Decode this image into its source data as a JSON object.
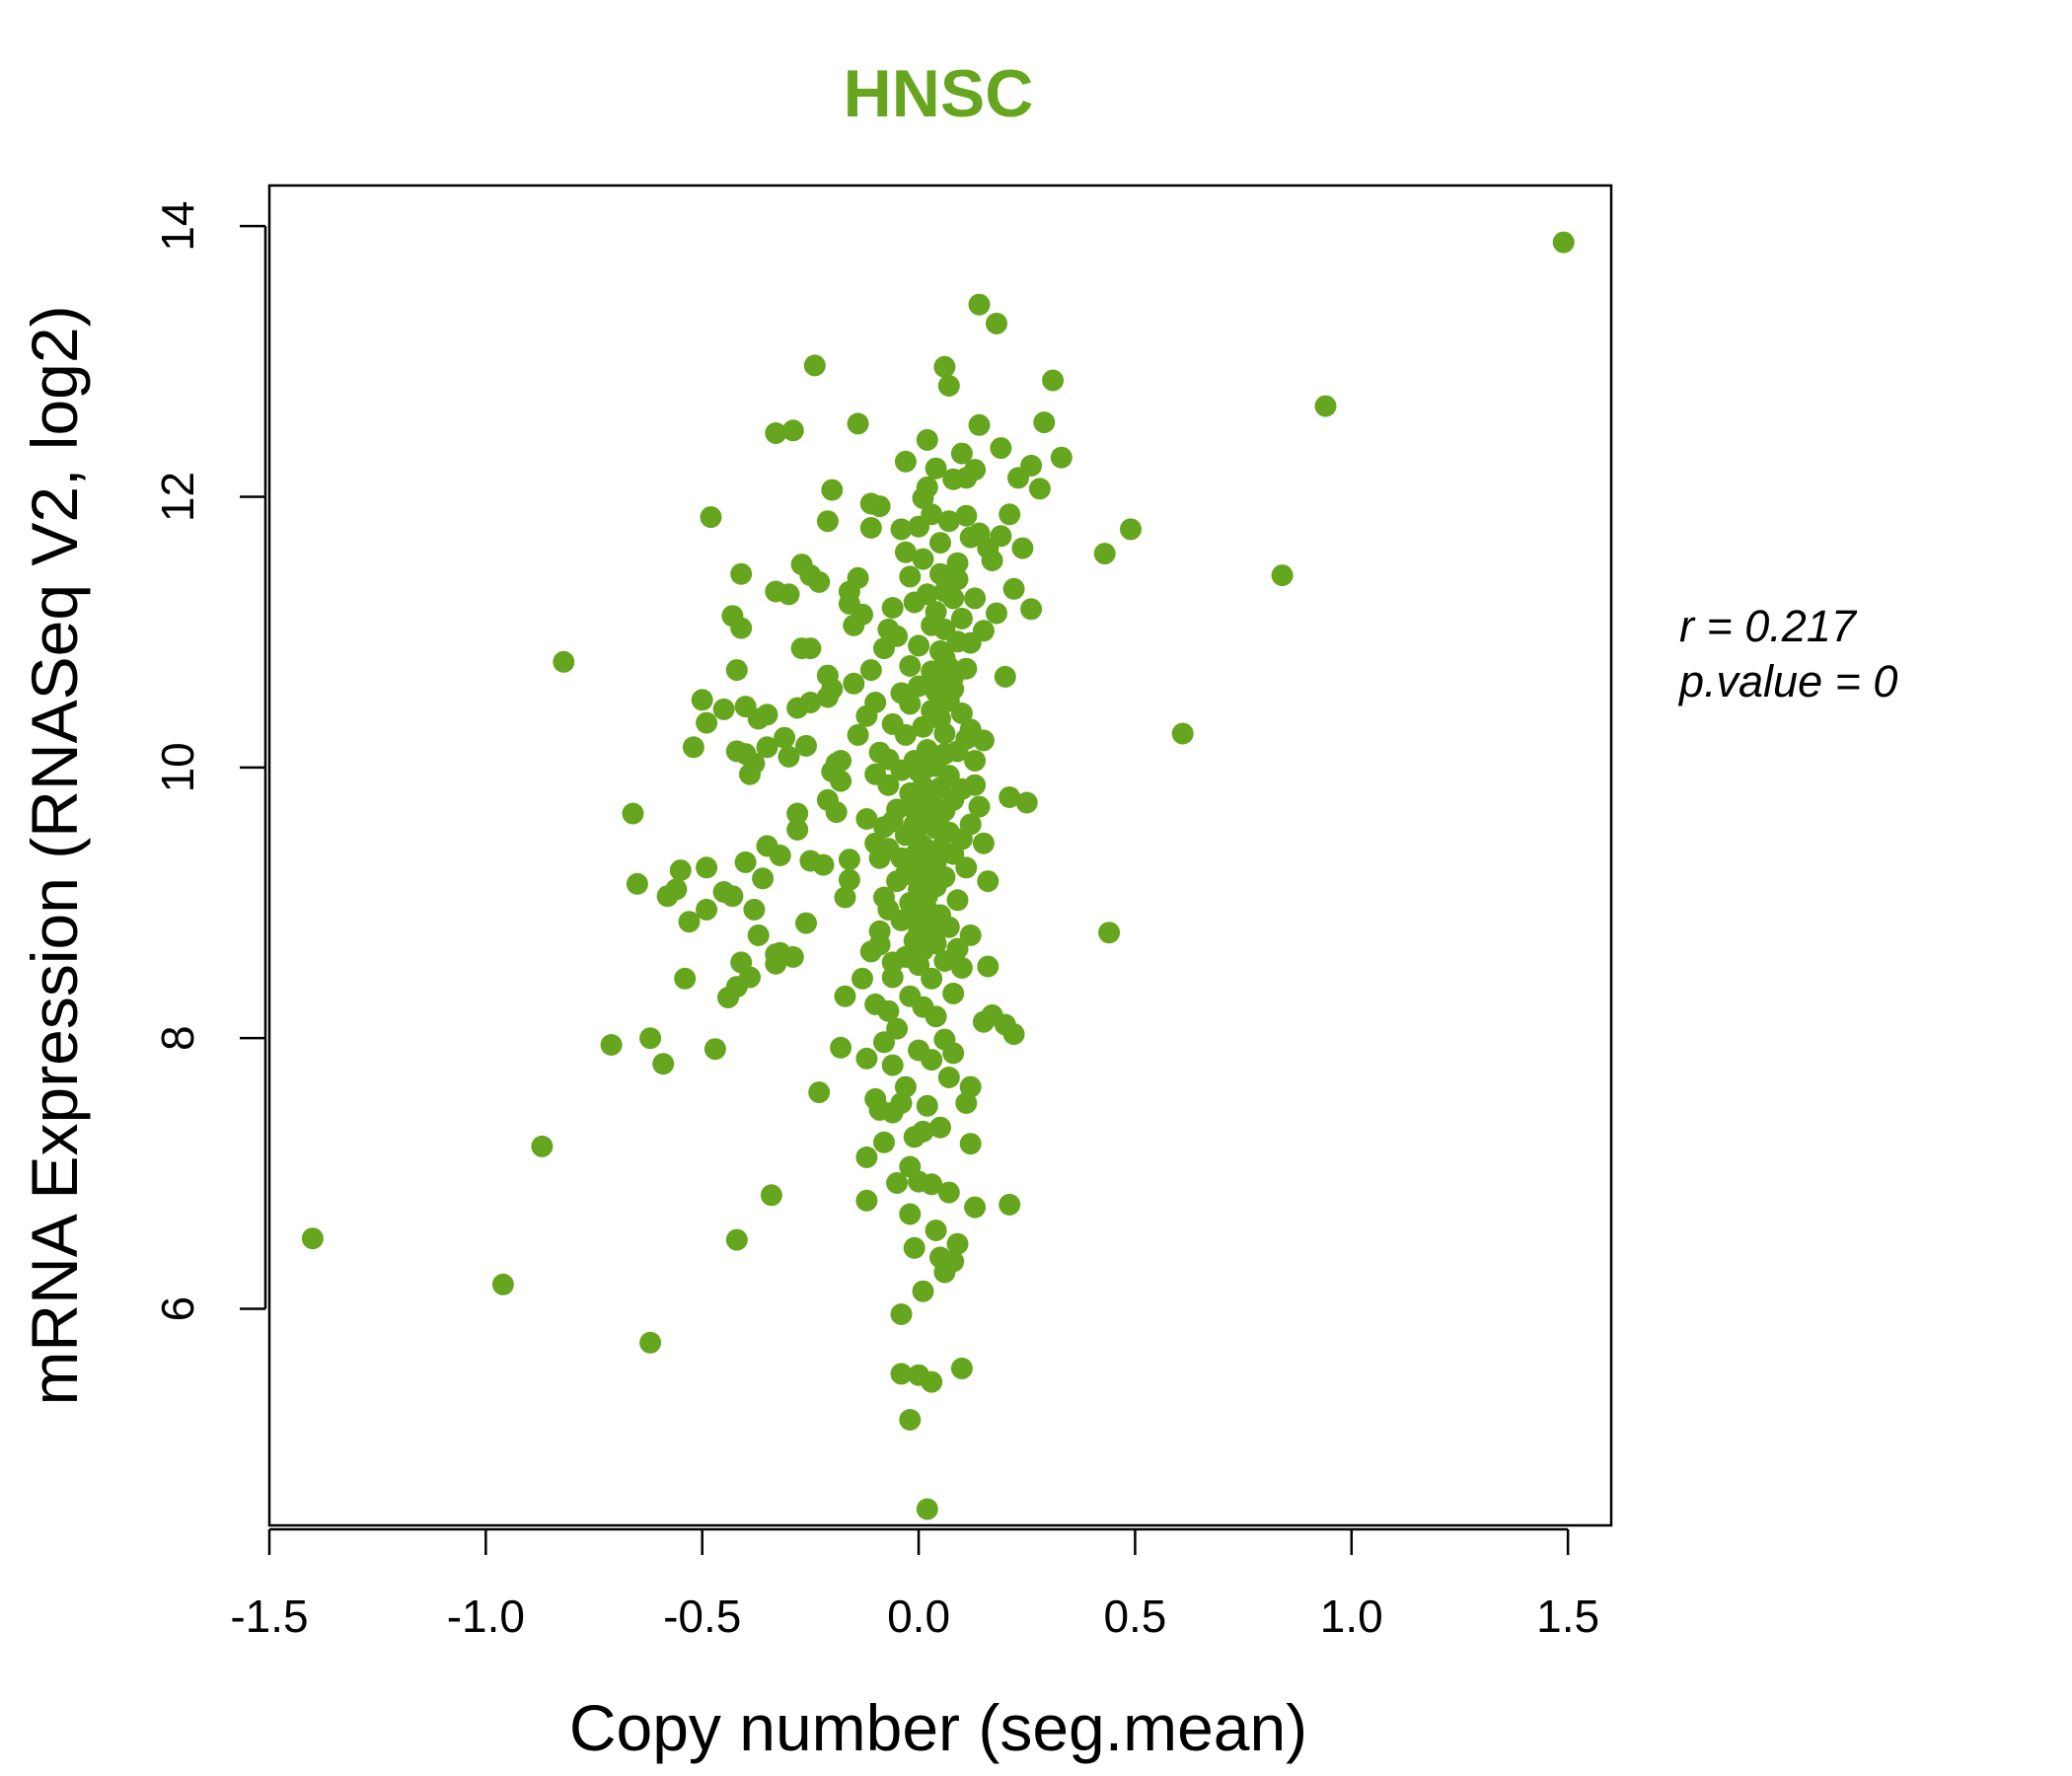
{
  "chart_data": {
    "type": "scatter",
    "title": "HNSC",
    "xlabel": "Copy number (seg.mean)",
    "ylabel": "mRNA Expression (RNASeq V2, log2)",
    "xlim": [
      -1.5,
      1.6
    ],
    "ylim": [
      4.4,
      14.3
    ],
    "x_ticks": [
      -1.5,
      -1.0,
      -0.5,
      0.0,
      0.5,
      1.0,
      1.5
    ],
    "x_tick_labels": [
      "-1.5",
      "-1.0",
      "-0.5",
      "0.0",
      "0.5",
      "1.0",
      "1.5"
    ],
    "y_ticks": [
      6,
      8,
      10,
      12,
      14
    ],
    "y_tick_labels": [
      "6",
      "8",
      "10",
      "12",
      "14"
    ],
    "grid": false,
    "colors": {
      "points": "#66a61e",
      "title": "#66a61e",
      "axes": "#000000"
    },
    "annotations": {
      "r_label": "r = 0.217",
      "p_label": "p.value = 0"
    },
    "points": [
      [
        1.49,
        13.88
      ],
      [
        0.94,
        12.67
      ],
      [
        0.84,
        11.42
      ],
      [
        0.61,
        10.25
      ],
      [
        0.49,
        11.76
      ],
      [
        0.44,
        8.78
      ],
      [
        0.43,
        11.58
      ],
      [
        -1.4,
        6.52
      ],
      [
        -0.96,
        6.18
      ],
      [
        -0.87,
        7.2
      ],
      [
        -0.82,
        10.78
      ],
      [
        -0.71,
        7.95
      ],
      [
        -0.66,
        9.66
      ],
      [
        -0.65,
        9.14
      ],
      [
        -0.62,
        8.0
      ],
      [
        -0.62,
        5.75
      ],
      [
        -0.59,
        7.81
      ],
      [
        -0.58,
        9.05
      ],
      [
        -0.56,
        9.1
      ],
      [
        -0.55,
        9.24
      ],
      [
        -0.54,
        8.44
      ],
      [
        -0.53,
        8.86
      ],
      [
        -0.52,
        10.15
      ],
      [
        -0.5,
        10.5
      ],
      [
        -0.49,
        9.26
      ],
      [
        -0.49,
        10.33
      ],
      [
        -0.49,
        8.95
      ],
      [
        -0.48,
        11.85
      ],
      [
        -0.47,
        7.92
      ],
      [
        -0.45,
        10.43
      ],
      [
        -0.45,
        9.08
      ],
      [
        -0.44,
        8.3
      ],
      [
        -0.43,
        11.12
      ],
      [
        -0.43,
        9.05
      ],
      [
        -0.42,
        10.72
      ],
      [
        -0.42,
        10.12
      ],
      [
        -0.42,
        6.51
      ],
      [
        -0.42,
        8.38
      ],
      [
        -0.41,
        11.43
      ],
      [
        -0.41,
        11.03
      ],
      [
        -0.41,
        8.56
      ],
      [
        -0.4,
        10.45
      ],
      [
        -0.4,
        10.1
      ],
      [
        -0.4,
        9.3
      ],
      [
        -0.39,
        8.45
      ],
      [
        -0.39,
        9.95
      ],
      [
        -0.38,
        10.03
      ],
      [
        -0.38,
        8.95
      ],
      [
        -0.37,
        8.76
      ],
      [
        -0.37,
        10.36
      ],
      [
        -0.36,
        9.18
      ],
      [
        -0.35,
        9.42
      ],
      [
        -0.35,
        10.39
      ],
      [
        -0.35,
        10.15
      ],
      [
        -0.34,
        6.84
      ],
      [
        -0.33,
        8.62
      ],
      [
        -0.33,
        11.3
      ],
      [
        -0.33,
        12.47
      ],
      [
        -0.33,
        8.55
      ],
      [
        -0.32,
        9.35
      ],
      [
        -0.32,
        8.63
      ],
      [
        -0.31,
        10.22
      ],
      [
        -0.3,
        11.28
      ],
      [
        -0.3,
        10.08
      ],
      [
        -0.29,
        8.6
      ],
      [
        -0.29,
        12.49
      ],
      [
        -0.28,
        10.44
      ],
      [
        -0.28,
        9.66
      ],
      [
        -0.28,
        9.54
      ],
      [
        -0.27,
        10.88
      ],
      [
        -0.27,
        11.5
      ],
      [
        -0.26,
        10.16
      ],
      [
        -0.26,
        8.85
      ],
      [
        -0.25,
        11.42
      ],
      [
        -0.25,
        10.48
      ],
      [
        -0.25,
        9.31
      ],
      [
        -0.25,
        10.88
      ],
      [
        -0.24,
        12.97
      ],
      [
        -0.23,
        11.37
      ],
      [
        -0.23,
        7.6
      ],
      [
        -0.22,
        9.28
      ],
      [
        -0.21,
        11.82
      ],
      [
        -0.21,
        10.52
      ],
      [
        -0.21,
        9.76
      ],
      [
        -0.21,
        10.68
      ],
      [
        -0.2,
        10.58
      ],
      [
        -0.2,
        9.97
      ],
      [
        -0.19,
        10.03
      ],
      [
        -0.19,
        9.67
      ],
      [
        -0.18,
        7.93
      ],
      [
        -0.18,
        9.9
      ],
      [
        -0.18,
        10.05
      ],
      [
        -0.17,
        9.04
      ],
      [
        -0.17,
        8.31
      ],
      [
        -0.16,
        11.3
      ],
      [
        -0.16,
        9.17
      ],
      [
        -0.16,
        9.32
      ],
      [
        -0.16,
        11.21
      ],
      [
        -0.15,
        11.05
      ],
      [
        -0.15,
        10.62
      ],
      [
        -0.14,
        12.54
      ],
      [
        -0.14,
        11.4
      ],
      [
        -0.14,
        10.24
      ],
      [
        -0.13,
        8.44
      ],
      [
        -0.13,
        11.13
      ],
      [
        -0.12,
        7.85
      ],
      [
        -0.12,
        9.62
      ],
      [
        -0.12,
        7.12
      ],
      [
        -0.12,
        10.38
      ],
      [
        -0.12,
        6.8
      ],
      [
        -0.11,
        11.95
      ],
      [
        -0.11,
        11.77
      ],
      [
        -0.11,
        8.64
      ],
      [
        -0.11,
        10.72
      ],
      [
        -0.1,
        8.25
      ],
      [
        -0.1,
        9.44
      ],
      [
        -0.1,
        9.95
      ],
      [
        -0.1,
        10.48
      ],
      [
        -0.1,
        7.55
      ],
      [
        -0.09,
        11.93
      ],
      [
        -0.09,
        8.79
      ],
      [
        -0.09,
        9.33
      ],
      [
        -0.09,
        10.11
      ],
      [
        -0.09,
        7.47
      ],
      [
        -0.09,
        8.69
      ],
      [
        -0.08,
        9.04
      ],
      [
        -0.08,
        10.88
      ],
      [
        -0.08,
        7.97
      ],
      [
        -0.08,
        9.56
      ],
      [
        -0.08,
        7.23
      ],
      [
        -0.07,
        10.06
      ],
      [
        -0.07,
        9.4
      ],
      [
        -0.07,
        8.95
      ],
      [
        -0.07,
        8.2
      ],
      [
        -0.07,
        11.02
      ],
      [
        -0.07,
        9.87
      ],
      [
        -0.06,
        11.18
      ],
      [
        -0.06,
        8.56
      ],
      [
        -0.06,
        9.6
      ],
      [
        -0.06,
        8.45
      ],
      [
        -0.06,
        10.32
      ],
      [
        -0.06,
        7.45
      ],
      [
        -0.06,
        7.8
      ],
      [
        -0.05,
        9.16
      ],
      [
        -0.05,
        10.97
      ],
      [
        -0.05,
        9.69
      ],
      [
        -0.05,
        8.07
      ],
      [
        -0.05,
        6.93
      ],
      [
        -0.04,
        10.55
      ],
      [
        -0.04,
        8.87
      ],
      [
        -0.04,
        9.33
      ],
      [
        -0.04,
        11.76
      ],
      [
        -0.04,
        7.52
      ],
      [
        -0.04,
        9.98
      ],
      [
        -0.04,
        5.52
      ],
      [
        -0.04,
        5.96
      ],
      [
        -0.03,
        10.24
      ],
      [
        -0.03,
        8.6
      ],
      [
        -0.03,
        12.26
      ],
      [
        -0.03,
        9.5
      ],
      [
        -0.03,
        7.64
      ],
      [
        -0.03,
        9.21
      ],
      [
        -0.03,
        11.59
      ],
      [
        -0.02,
        10.47
      ],
      [
        -0.02,
        8.31
      ],
      [
        -0.02,
        11.41
      ],
      [
        -0.02,
        9.81
      ],
      [
        -0.02,
        7.05
      ],
      [
        -0.02,
        10.75
      ],
      [
        -0.02,
        5.18
      ],
      [
        -0.02,
        6.7
      ],
      [
        -0.01,
        9.35
      ],
      [
        -0.01,
        8.72
      ],
      [
        -0.01,
        11.22
      ],
      [
        -0.01,
        9.69
      ],
      [
        -0.01,
        10.05
      ],
      [
        -0.01,
        7.27
      ],
      [
        -0.01,
        8.88
      ],
      [
        -0.01,
        6.45
      ],
      [
        0.0,
        11.78
      ],
      [
        0.0,
        9.97
      ],
      [
        0.0,
        8.54
      ],
      [
        0.0,
        10.6
      ],
      [
        0.0,
        9.1
      ],
      [
        0.0,
        7.91
      ],
      [
        0.0,
        10.9
      ],
      [
        0.0,
        5.51
      ],
      [
        0.0,
        6.94
      ],
      [
        0.01,
        11.54
      ],
      [
        0.01,
        9.42
      ],
      [
        0.01,
        10.3
      ],
      [
        0.01,
        8.65
      ],
      [
        0.01,
        9.86
      ],
      [
        0.01,
        11.99
      ],
      [
        0.01,
        8.23
      ],
      [
        0.01,
        6.13
      ],
      [
        0.01,
        7.31
      ],
      [
        0.02,
        10.13
      ],
      [
        0.02,
        9.59
      ],
      [
        0.02,
        11.28
      ],
      [
        0.02,
        8.95
      ],
      [
        0.02,
        12.07
      ],
      [
        0.02,
        9.24
      ],
      [
        0.02,
        7.5
      ],
      [
        0.02,
        4.52
      ],
      [
        0.02,
        12.42
      ],
      [
        0.03,
        10.71
      ],
      [
        0.03,
        9.76
      ],
      [
        0.03,
        8.44
      ],
      [
        0.03,
        11.87
      ],
      [
        0.03,
        9.33
      ],
      [
        0.03,
        10.42
      ],
      [
        0.03,
        7.84
      ],
      [
        0.03,
        6.92
      ],
      [
        0.03,
        5.46
      ],
      [
        0.04,
        11.15
      ],
      [
        0.04,
        9.55
      ],
      [
        0.04,
        10.01
      ],
      [
        0.04,
        8.7
      ],
      [
        0.04,
        12.21
      ],
      [
        0.04,
        9.12
      ],
      [
        0.04,
        8.16
      ],
      [
        0.04,
        10.56
      ],
      [
        0.04,
        6.58
      ],
      [
        0.05,
        11.66
      ],
      [
        0.05,
        9.85
      ],
      [
        0.05,
        10.36
      ],
      [
        0.05,
        8.91
      ],
      [
        0.05,
        11.43
      ],
      [
        0.05,
        9.4
      ],
      [
        0.05,
        7.34
      ],
      [
        0.05,
        6.38
      ],
      [
        0.06,
        11.02
      ],
      [
        0.06,
        9.68
      ],
      [
        0.06,
        10.81
      ],
      [
        0.06,
        8.57
      ],
      [
        0.06,
        12.96
      ],
      [
        0.06,
        9.19
      ],
      [
        0.06,
        7.99
      ],
      [
        0.06,
        10.25
      ],
      [
        0.06,
        6.27
      ],
      [
        0.07,
        11.82
      ],
      [
        0.07,
        9.94
      ],
      [
        0.07,
        10.49
      ],
      [
        0.07,
        8.82
      ],
      [
        0.07,
        12.82
      ],
      [
        0.07,
        9.52
      ],
      [
        0.07,
        7.71
      ],
      [
        0.07,
        6.86
      ],
      [
        0.08,
        11.25
      ],
      [
        0.08,
        9.36
      ],
      [
        0.08,
        10.67
      ],
      [
        0.08,
        8.33
      ],
      [
        0.08,
        12.13
      ],
      [
        0.08,
        9.76
      ],
      [
        0.08,
        7.89
      ],
      [
        0.08,
        6.35
      ],
      [
        0.09,
        11.51
      ],
      [
        0.09,
        10.12
      ],
      [
        0.09,
        9.02
      ],
      [
        0.09,
        10.93
      ],
      [
        0.09,
        8.66
      ],
      [
        0.09,
        11.39
      ],
      [
        0.09,
        6.48
      ],
      [
        0.1,
        12.32
      ],
      [
        0.1,
        10.4
      ],
      [
        0.1,
        9.47
      ],
      [
        0.1,
        11.1
      ],
      [
        0.1,
        8.52
      ],
      [
        0.1,
        9.84
      ],
      [
        0.1,
        5.56
      ],
      [
        0.11,
        11.86
      ],
      [
        0.11,
        10.21
      ],
      [
        0.11,
        12.14
      ],
      [
        0.11,
        9.26
      ],
      [
        0.11,
        10.73
      ],
      [
        0.11,
        7.52
      ],
      [
        0.12,
        11.7
      ],
      [
        0.12,
        10.28
      ],
      [
        0.12,
        9.58
      ],
      [
        0.12,
        10.92
      ],
      [
        0.12,
        8.76
      ],
      [
        0.12,
        7.64
      ],
      [
        0.12,
        7.22
      ],
      [
        0.13,
        12.2
      ],
      [
        0.13,
        11.25
      ],
      [
        0.13,
        10.05
      ],
      [
        0.13,
        9.87
      ],
      [
        0.13,
        6.75
      ],
      [
        0.14,
        13.42
      ],
      [
        0.14,
        11.73
      ],
      [
        0.14,
        12.53
      ],
      [
        0.14,
        9.71
      ],
      [
        0.15,
        11.01
      ],
      [
        0.15,
        10.2
      ],
      [
        0.15,
        8.12
      ],
      [
        0.15,
        9.44
      ],
      [
        0.16,
        9.16
      ],
      [
        0.16,
        8.53
      ],
      [
        0.16,
        11.62
      ],
      [
        0.17,
        11.53
      ],
      [
        0.17,
        8.17
      ],
      [
        0.18,
        13.28
      ],
      [
        0.18,
        11.14
      ],
      [
        0.19,
        12.36
      ],
      [
        0.19,
        11.71
      ],
      [
        0.2,
        10.67
      ],
      [
        0.2,
        8.1
      ],
      [
        0.21,
        11.87
      ],
      [
        0.21,
        9.78
      ],
      [
        0.21,
        6.77
      ],
      [
        0.22,
        11.32
      ],
      [
        0.22,
        8.03
      ],
      [
        0.23,
        12.14
      ],
      [
        0.24,
        11.62
      ],
      [
        0.25,
        9.74
      ],
      [
        0.26,
        12.23
      ],
      [
        0.26,
        11.17
      ],
      [
        0.28,
        12.06
      ],
      [
        0.29,
        12.55
      ],
      [
        0.31,
        12.86
      ],
      [
        0.33,
        12.29
      ],
      [
        -0.2,
        12.05
      ],
      [
        0.0,
        9.45
      ],
      [
        0.01,
        9.72
      ],
      [
        0.02,
        9.05
      ],
      [
        0.03,
        9.6
      ],
      [
        0.0,
        9.25
      ],
      [
        0.02,
        9.38
      ],
      [
        -0.01,
        9.58
      ],
      [
        0.04,
        9.3
      ],
      [
        0.01,
        9.15
      ],
      [
        0.03,
        8.82
      ],
      [
        0.05,
        9.65
      ],
      [
        -0.02,
        9.0
      ],
      [
        0.0,
        8.78
      ],
      [
        0.02,
        10.0
      ],
      [
        0.06,
        10.1
      ],
      [
        0.04,
        10.62
      ],
      [
        0.07,
        10.74
      ],
      [
        0.05,
        10.86
      ],
      [
        0.08,
        10.58
      ],
      [
        0.03,
        11.05
      ],
      [
        0.06,
        11.3
      ]
    ]
  }
}
